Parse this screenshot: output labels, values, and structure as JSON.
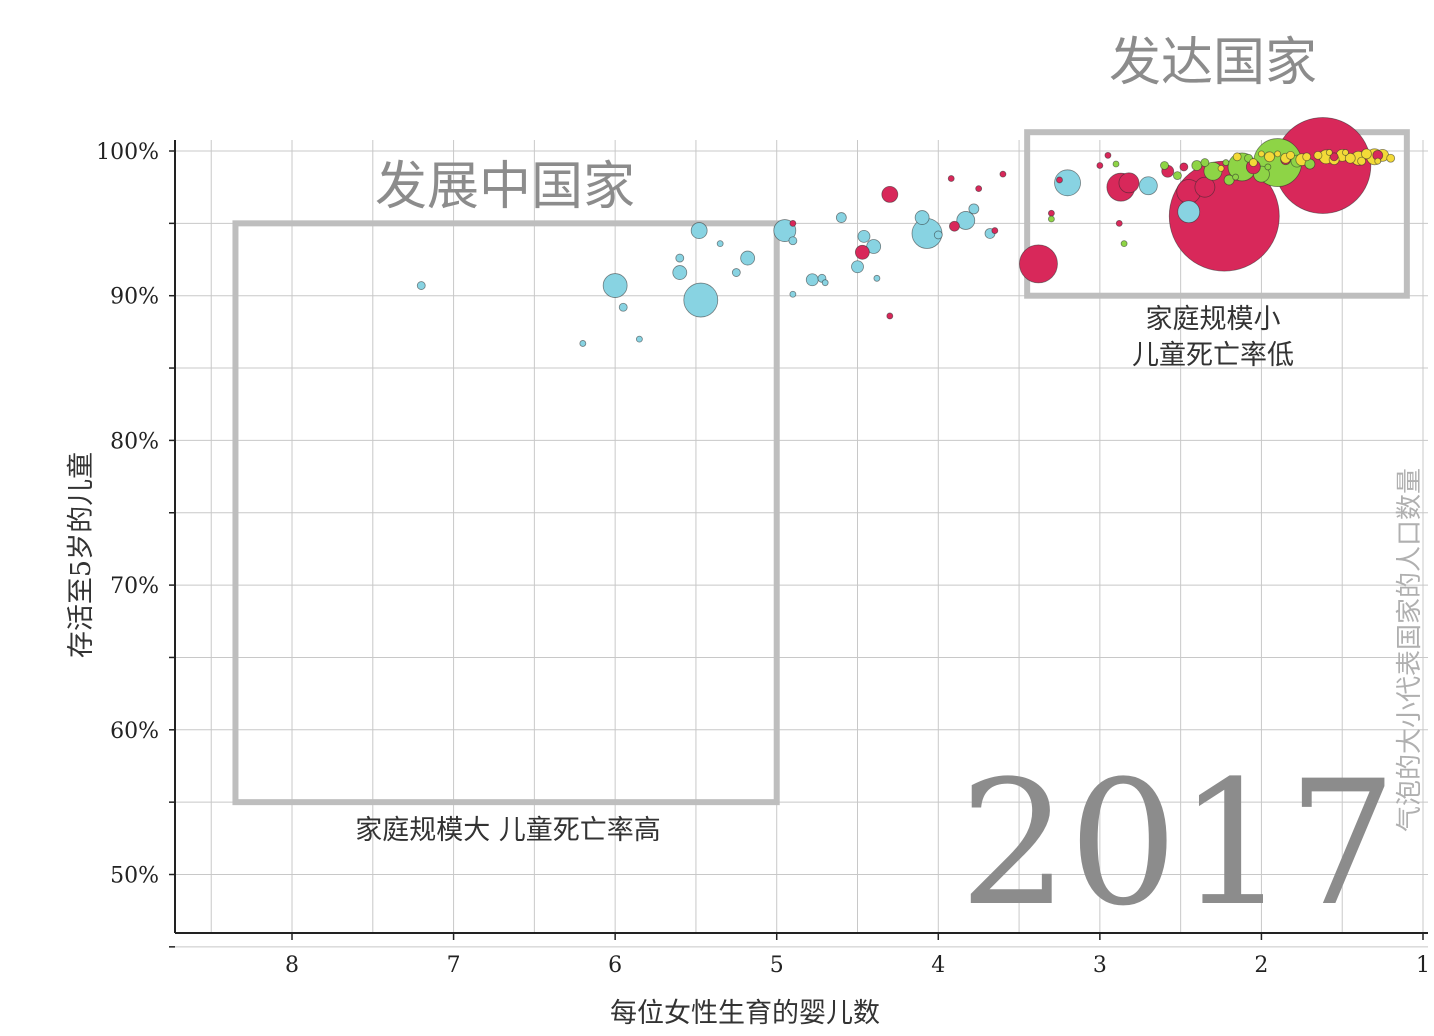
{
  "chart_data": {
    "type": "scatter",
    "title": "",
    "year_label": "2017",
    "xlabel": "每位女性生育的婴儿数",
    "ylabel": "存活至5岁的儿童",
    "size_legend": "气泡的大小代表国家的人口数量",
    "x_reversed": true,
    "xlim": [
      8.75,
      1.0
    ],
    "ylim": [
      44,
      100.5
    ],
    "x_ticks": [
      "8",
      "7",
      "6",
      "5",
      "4",
      "3",
      "2",
      "1"
    ],
    "y_ticks": [
      "100%",
      "90%",
      "80%",
      "70%",
      "60%",
      "50%"
    ],
    "y_tick_values": [
      100,
      90,
      80,
      70,
      60,
      50
    ],
    "x_tick_values": [
      8,
      7,
      6,
      5,
      4,
      3,
      2,
      1
    ],
    "grid": true,
    "colors": {
      "asia": "#d8285a",
      "africa": "#88d3e2",
      "europe": "#f3da38",
      "americas": "#8ed446",
      "grid": "#c8c8c8",
      "box": "#bebebe",
      "year": "#8c8c8c"
    },
    "regions": [
      {
        "label": "发展中国家",
        "caption": "家庭规模大 儿童死亡率高",
        "x_range": [
          8.35,
          5.0
        ],
        "y_range": [
          55,
          95
        ]
      },
      {
        "label": "发达国家",
        "caption_lines": [
          "家庭规模小",
          "儿童死亡率低"
        ],
        "x_range": [
          3.45,
          1.1
        ],
        "y_range": [
          90,
          101.3
        ]
      }
    ],
    "series": [
      {
        "name": "africa",
        "color": "#88d3e2",
        "points": [
          {
            "x": 7.2,
            "y": 90.7,
            "r": 4
          },
          {
            "x": 6.0,
            "y": 90.7,
            "r": 12
          },
          {
            "x": 5.95,
            "y": 89.2,
            "r": 4
          },
          {
            "x": 6.2,
            "y": 86.7,
            "r": 3
          },
          {
            "x": 5.85,
            "y": 87.0,
            "r": 3
          },
          {
            "x": 5.47,
            "y": 89.7,
            "r": 17
          },
          {
            "x": 5.48,
            "y": 94.5,
            "r": 8
          },
          {
            "x": 5.6,
            "y": 91.6,
            "r": 7
          },
          {
            "x": 5.6,
            "y": 92.6,
            "r": 4
          },
          {
            "x": 5.35,
            "y": 93.6,
            "r": 3
          },
          {
            "x": 5.25,
            "y": 91.6,
            "r": 4
          },
          {
            "x": 5.18,
            "y": 92.6,
            "r": 7
          },
          {
            "x": 4.95,
            "y": 94.5,
            "r": 11
          },
          {
            "x": 4.9,
            "y": 93.8,
            "r": 4
          },
          {
            "x": 4.9,
            "y": 90.1,
            "r": 3
          },
          {
            "x": 4.78,
            "y": 91.1,
            "r": 6
          },
          {
            "x": 4.72,
            "y": 91.2,
            "r": 4
          },
          {
            "x": 4.7,
            "y": 90.9,
            "r": 3
          },
          {
            "x": 4.6,
            "y": 95.4,
            "r": 5
          },
          {
            "x": 4.5,
            "y": 92.0,
            "r": 6
          },
          {
            "x": 4.46,
            "y": 94.1,
            "r": 6
          },
          {
            "x": 4.4,
            "y": 93.4,
            "r": 7
          },
          {
            "x": 4.38,
            "y": 91.2,
            "r": 3
          },
          {
            "x": 4.07,
            "y": 94.3,
            "r": 15
          },
          {
            "x": 4.1,
            "y": 95.4,
            "r": 7
          },
          {
            "x": 4.0,
            "y": 94.2,
            "r": 4
          },
          {
            "x": 3.83,
            "y": 95.2,
            "r": 9
          },
          {
            "x": 3.78,
            "y": 96.0,
            "r": 5
          },
          {
            "x": 3.68,
            "y": 94.3,
            "r": 5
          },
          {
            "x": 3.2,
            "y": 97.8,
            "r": 13
          },
          {
            "x": 2.7,
            "y": 97.6,
            "r": 9
          },
          {
            "x": 2.45,
            "y": 95.8,
            "r": 11
          }
        ]
      },
      {
        "name": "asia",
        "color": "#d8285a",
        "points": [
          {
            "x": 1.62,
            "y": 99.0,
            "r": 48
          },
          {
            "x": 2.23,
            "y": 95.5,
            "r": 55
          },
          {
            "x": 2.45,
            "y": 97.2,
            "r": 12
          },
          {
            "x": 2.35,
            "y": 97.5,
            "r": 10
          },
          {
            "x": 3.38,
            "y": 92.2,
            "r": 19
          },
          {
            "x": 2.87,
            "y": 97.5,
            "r": 14
          },
          {
            "x": 2.82,
            "y": 97.8,
            "r": 10
          },
          {
            "x": 4.3,
            "y": 97.0,
            "r": 8
          },
          {
            "x": 4.47,
            "y": 93.0,
            "r": 7
          },
          {
            "x": 3.9,
            "y": 94.8,
            "r": 5
          },
          {
            "x": 2.58,
            "y": 98.6,
            "r": 6
          },
          {
            "x": 2.48,
            "y": 98.9,
            "r": 4
          },
          {
            "x": 2.95,
            "y": 99.7,
            "r": 3
          },
          {
            "x": 3.65,
            "y": 94.5,
            "r": 3
          },
          {
            "x": 3.25,
            "y": 98.0,
            "r": 3
          },
          {
            "x": 3.0,
            "y": 99.0,
            "r": 3
          },
          {
            "x": 3.3,
            "y": 95.7,
            "r": 3
          },
          {
            "x": 2.88,
            "y": 95.0,
            "r": 3
          },
          {
            "x": 4.9,
            "y": 95.0,
            "r": 3
          },
          {
            "x": 3.92,
            "y": 98.1,
            "r": 3
          },
          {
            "x": 3.75,
            "y": 97.4,
            "r": 3
          },
          {
            "x": 3.6,
            "y": 98.4,
            "r": 3
          },
          {
            "x": 4.3,
            "y": 88.6,
            "r": 3
          },
          {
            "x": 2.05,
            "y": 98.9,
            "r": 7
          },
          {
            "x": 1.85,
            "y": 99.4,
            "r": 5
          },
          {
            "x": 1.55,
            "y": 99.6,
            "r": 4
          },
          {
            "x": 1.28,
            "y": 99.7,
            "r": 5
          }
        ]
      },
      {
        "name": "americas",
        "color": "#8ed446",
        "points": [
          {
            "x": 1.9,
            "y": 99.2,
            "r": 24
          },
          {
            "x": 2.12,
            "y": 98.9,
            "r": 14
          },
          {
            "x": 2.3,
            "y": 98.6,
            "r": 9
          },
          {
            "x": 2.0,
            "y": 98.4,
            "r": 8
          },
          {
            "x": 2.4,
            "y": 99.0,
            "r": 5
          },
          {
            "x": 1.78,
            "y": 99.3,
            "r": 6
          },
          {
            "x": 2.2,
            "y": 98.0,
            "r": 5
          },
          {
            "x": 2.52,
            "y": 98.3,
            "r": 4
          },
          {
            "x": 2.6,
            "y": 99.0,
            "r": 4
          },
          {
            "x": 2.35,
            "y": 99.2,
            "r": 4
          },
          {
            "x": 1.7,
            "y": 99.1,
            "r": 5
          },
          {
            "x": 2.9,
            "y": 99.1,
            "r": 3
          },
          {
            "x": 2.08,
            "y": 99.5,
            "r": 4
          },
          {
            "x": 2.22,
            "y": 99.2,
            "r": 3
          },
          {
            "x": 2.16,
            "y": 98.2,
            "r": 3
          },
          {
            "x": 1.96,
            "y": 98.9,
            "r": 3
          },
          {
            "x": 2.85,
            "y": 93.6,
            "r": 3
          },
          {
            "x": 3.3,
            "y": 95.3,
            "r": 3
          }
        ]
      },
      {
        "name": "europe",
        "color": "#f3da38",
        "points": [
          {
            "x": 1.3,
            "y": 99.6,
            "r": 8
          },
          {
            "x": 1.4,
            "y": 99.5,
            "r": 7
          },
          {
            "x": 1.5,
            "y": 99.7,
            "r": 6
          },
          {
            "x": 1.6,
            "y": 99.6,
            "r": 7
          },
          {
            "x": 1.75,
            "y": 99.4,
            "r": 6
          },
          {
            "x": 1.85,
            "y": 99.5,
            "r": 5
          },
          {
            "x": 1.95,
            "y": 99.6,
            "r": 5
          },
          {
            "x": 1.25,
            "y": 99.7,
            "r": 6
          },
          {
            "x": 1.35,
            "y": 99.8,
            "r": 5
          },
          {
            "x": 1.45,
            "y": 99.5,
            "r": 5
          },
          {
            "x": 1.55,
            "y": 99.4,
            "r": 5
          },
          {
            "x": 1.65,
            "y": 99.7,
            "r": 4
          },
          {
            "x": 1.72,
            "y": 99.6,
            "r": 4
          },
          {
            "x": 1.82,
            "y": 99.7,
            "r": 4
          },
          {
            "x": 2.05,
            "y": 99.2,
            "r": 4
          },
          {
            "x": 1.2,
            "y": 99.5,
            "r": 4
          },
          {
            "x": 2.15,
            "y": 99.6,
            "r": 4
          },
          {
            "x": 1.9,
            "y": 99.8,
            "r": 3
          },
          {
            "x": 1.38,
            "y": 99.3,
            "r": 4
          },
          {
            "x": 1.58,
            "y": 99.9,
            "r": 3
          },
          {
            "x": 2.25,
            "y": 98.8,
            "r": 3
          },
          {
            "x": 1.48,
            "y": 99.9,
            "r": 3
          },
          {
            "x": 1.28,
            "y": 99.3,
            "r": 3
          },
          {
            "x": 2.0,
            "y": 99.8,
            "r": 3
          }
        ]
      }
    ]
  }
}
